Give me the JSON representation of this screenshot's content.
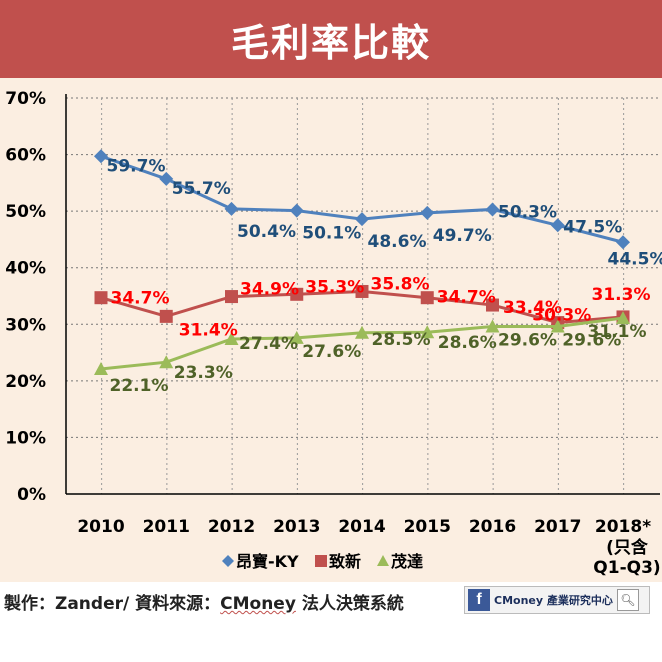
{
  "header": {
    "title": "毛利率比較"
  },
  "footer": {
    "credit_prefix": "製作：Zander/ 資料來源：",
    "credit_source": "CMoney",
    "credit_suffix": " 法人決策系統",
    "badge_fb": "f",
    "badge_text": "CMoney 產業研究中心"
  },
  "colors": {
    "header_bg": "#c0504d",
    "plot_bg": "#fbeee1",
    "s1": "#4f81bd",
    "s2": "#c0504d",
    "s3": "#9bbb59"
  },
  "chart_data": {
    "type": "line",
    "categories": [
      "2010",
      "2011",
      "2012",
      "2013",
      "2014",
      "2015",
      "2016",
      "2017",
      "2018*"
    ],
    "category_note": [
      "(只含",
      "Q1-Q3)"
    ],
    "ylim": [
      0,
      70
    ],
    "yticks": [
      "0%",
      "10%",
      "20%",
      "30%",
      "40%",
      "50%",
      "60%",
      "70%"
    ],
    "grid": true,
    "legend": "bottom",
    "series": [
      {
        "name": "昂寶-KY",
        "marker": "diamond",
        "color": "#4f81bd",
        "label_color": "#1f4e79",
        "values": [
          59.7,
          55.7,
          50.4,
          50.1,
          48.6,
          49.7,
          50.3,
          47.5,
          44.5
        ],
        "labels": [
          "59.7%",
          "55.7%",
          "50.4%",
          "50.1%",
          "48.6%",
          "49.7%",
          "50.3%",
          "47.5%",
          "44.5%"
        ]
      },
      {
        "name": "致新",
        "marker": "square",
        "color": "#c0504d",
        "label_color": "#ff0000",
        "values": [
          34.7,
          31.4,
          34.9,
          35.3,
          35.8,
          34.7,
          33.4,
          30.3,
          31.3
        ],
        "labels": [
          "34.7%",
          "31.4%",
          "34.9%",
          "35.3%",
          "35.8%",
          "34.7%",
          "33.4%",
          "30.3%",
          "31.3%"
        ]
      },
      {
        "name": "茂達",
        "marker": "triangle",
        "color": "#9bbb59",
        "label_color": "#4f6228",
        "values": [
          22.1,
          23.3,
          27.4,
          27.6,
          28.5,
          28.6,
          29.6,
          29.6,
          31.1
        ],
        "labels": [
          "22.1%",
          "23.3%",
          "27.4%",
          "27.6%",
          "28.5%",
          "28.6%",
          "29.6%",
          "29.6%",
          "31.1%"
        ]
      }
    ]
  }
}
